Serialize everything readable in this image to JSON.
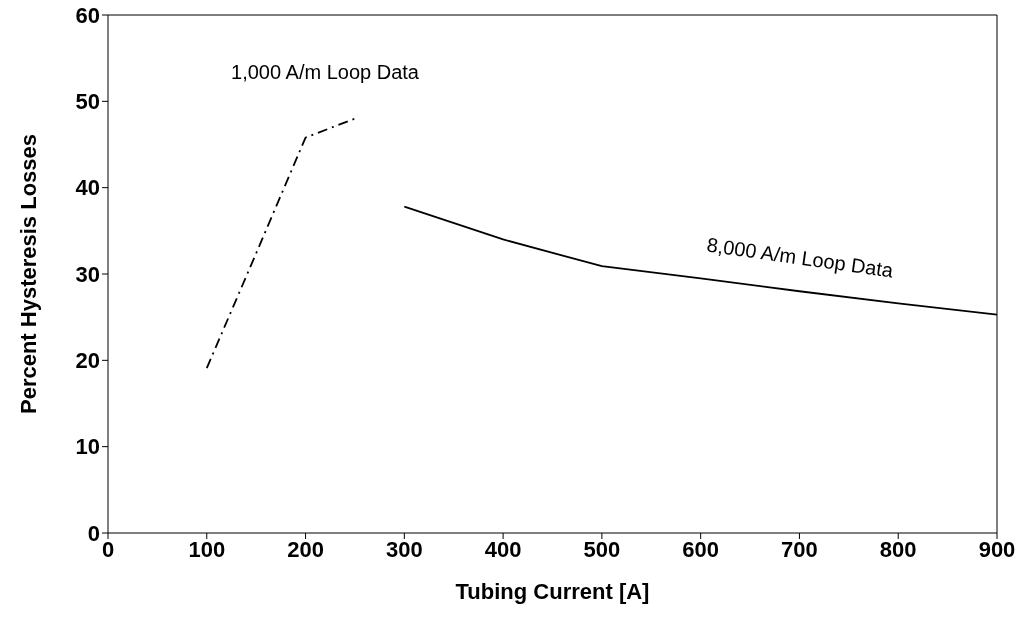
{
  "chart_data": {
    "type": "line",
    "xlabel": "Tubing Current [A]",
    "ylabel": "Percent Hysteresis Losses",
    "xlim": [
      0,
      900
    ],
    "xticks": [
      0,
      100,
      200,
      300,
      400,
      500,
      600,
      700,
      800,
      900
    ],
    "ylim": [
      0,
      60
    ],
    "yticks": [
      0,
      10,
      20,
      30,
      40,
      50,
      60
    ],
    "grid": false,
    "legend": false,
    "series": [
      {
        "color": "#000000",
        "line_style": "dashed",
        "x": [
          100,
          150,
          200,
          250
        ],
        "values": [
          19.1,
          32.4,
          45.8,
          48
        ]
      },
      {
        "color": "#000000",
        "line_style": "solid",
        "x": [
          300,
          400,
          500,
          600,
          700,
          800,
          900
        ],
        "values": [
          37.8,
          34,
          30.9,
          29.5,
          28,
          26.6,
          25.3
        ]
      }
    ],
    "annotations": [
      "1,000 A/m Loop Data",
      "8,000 A/m Loop Data"
    ]
  }
}
